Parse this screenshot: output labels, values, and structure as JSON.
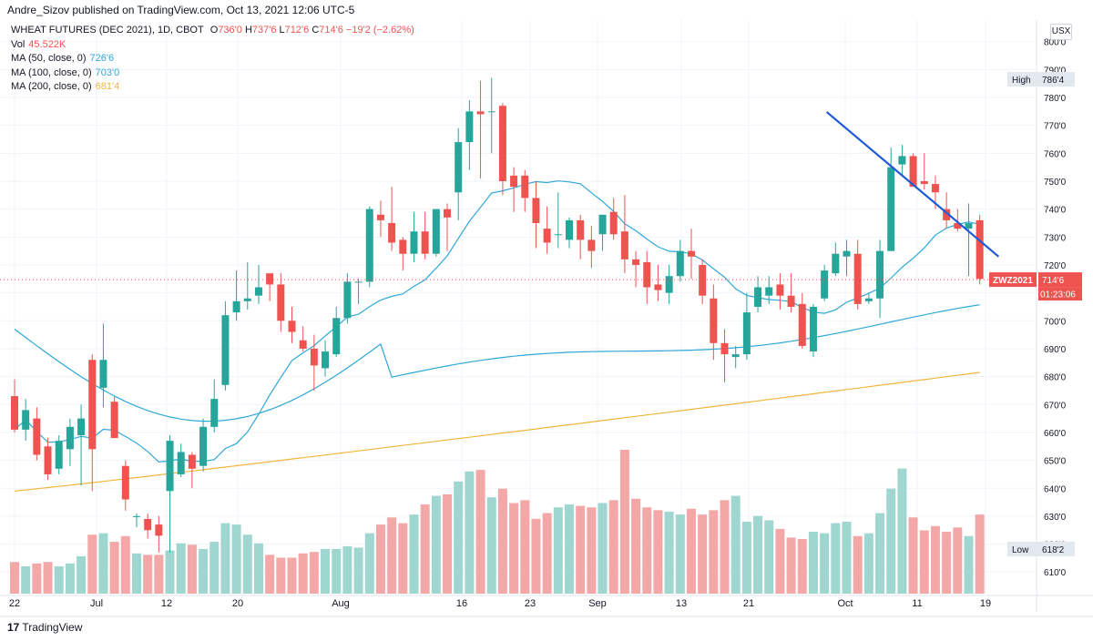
{
  "header": {
    "published_line": "Andre_Sizov published on TradingView.com, Oct 13, 2021 12:06 UTC-5"
  },
  "legend": {
    "symbol_line": "WHEAT FUTURES (DEC 2021), 1D, CBOT",
    "ohlc": {
      "open_label": "O",
      "open": "736'0",
      "high_label": "H",
      "high": "737'6",
      "low_label": "L",
      "low": "712'6",
      "close_label": "C",
      "close": "714'6",
      "change": "−19'2 (−2.62%)"
    },
    "volume": {
      "label": "Vol",
      "value": "45.522K"
    },
    "ma_lines": [
      {
        "label": "MA (50, close, 0)",
        "value": "726'6",
        "color": "#2fa8d8"
      },
      {
        "label": "MA (100, close, 0)",
        "value": "703'0",
        "color": "#2fa8d8"
      },
      {
        "label": "MA (200, close, 0)",
        "value": "681'4",
        "color": "#f2b63d"
      }
    ]
  },
  "currency_badge": "USX",
  "price_axis": {
    "ticks": [
      "800'0",
      "790'0",
      "780'0",
      "770'0",
      "760'0",
      "750'0",
      "740'0",
      "730'0",
      "720'0",
      "710'0",
      "700'0",
      "690'0",
      "680'0",
      "670'0",
      "660'0",
      "650'0",
      "640'0",
      "630'0",
      "620'0",
      "610'0"
    ],
    "high_label": "High",
    "high_value": "786'4",
    "low_label": "Low",
    "low_value": "618'2",
    "last_symbol": "ZWZ2021",
    "last_price": "714'6",
    "countdown": "01:23:06"
  },
  "time_axis": {
    "labels": [
      "22",
      "Jul",
      "12",
      "20",
      "Aug",
      "16",
      "23",
      "Sep",
      "13",
      "21",
      "Oct",
      "11",
      "19"
    ]
  },
  "footer": {
    "logo_glyph": "17",
    "brand": "TradingView"
  },
  "colors": {
    "up": "#26a69a",
    "down": "#ef5350",
    "vol_up": "#9fd6d0",
    "vol_down": "#f4a7a7",
    "ma50": "#2fa8d8",
    "ma100": "#2fa8d8",
    "ma200": "#f2b63d",
    "trendline": "#1e5bd6",
    "grid": "#f0f3fa"
  },
  "chart_data": {
    "type": "candlestick",
    "price_unit": "cents/bu",
    "ylim": [
      603,
      804
    ],
    "candles": [
      {
        "o": 673,
        "h": 679,
        "l": 660,
        "c": 661
      },
      {
        "o": 661,
        "h": 672,
        "l": 657,
        "c": 668
      },
      {
        "o": 665,
        "h": 669,
        "l": 650,
        "c": 652
      },
      {
        "o": 655,
        "h": 658,
        "l": 643,
        "c": 645
      },
      {
        "o": 647,
        "h": 659,
        "l": 645,
        "c": 657
      },
      {
        "o": 654,
        "h": 665,
        "l": 648,
        "c": 662
      },
      {
        "o": 659,
        "h": 670,
        "l": 641,
        "c": 665
      },
      {
        "o": 686,
        "h": 688,
        "l": 639,
        "c": 654
      },
      {
        "o": 676,
        "h": 699,
        "l": 669,
        "c": 686
      },
      {
        "o": 671,
        "h": 673,
        "l": 658,
        "c": 658
      },
      {
        "o": 648,
        "h": 650,
        "l": 632,
        "c": 636
      },
      {
        "o": 630,
        "h": 631,
        "l": 626,
        "c": 630
      },
      {
        "o": 629,
        "h": 631,
        "l": 622,
        "c": 625
      },
      {
        "o": 627,
        "h": 630,
        "l": 617,
        "c": 623
      },
      {
        "o": 639,
        "h": 659,
        "l": 617,
        "c": 657
      },
      {
        "o": 645,
        "h": 656,
        "l": 644,
        "c": 653
      },
      {
        "o": 652,
        "h": 653,
        "l": 640,
        "c": 647
      },
      {
        "o": 648,
        "h": 665,
        "l": 646,
        "c": 662
      },
      {
        "o": 662,
        "h": 679,
        "l": 660,
        "c": 672
      },
      {
        "o": 677,
        "h": 707,
        "l": 675,
        "c": 702
      },
      {
        "o": 703,
        "h": 718,
        "l": 700,
        "c": 707
      },
      {
        "o": 707,
        "h": 721,
        "l": 704,
        "c": 708
      },
      {
        "o": 709,
        "h": 720,
        "l": 706,
        "c": 712
      },
      {
        "o": 717,
        "h": 716,
        "l": 707,
        "c": 713
      },
      {
        "o": 713,
        "h": 717,
        "l": 696,
        "c": 700
      },
      {
        "o": 700,
        "h": 705,
        "l": 692,
        "c": 696
      },
      {
        "o": 693,
        "h": 698,
        "l": 689,
        "c": 690
      },
      {
        "o": 690,
        "h": 695,
        "l": 675,
        "c": 684
      },
      {
        "o": 683,
        "h": 693,
        "l": 680,
        "c": 689
      },
      {
        "o": 688,
        "h": 705,
        "l": 687,
        "c": 701
      },
      {
        "o": 701,
        "h": 717,
        "l": 699,
        "c": 714
      },
      {
        "o": 714,
        "h": 715,
        "l": 706,
        "c": 714
      },
      {
        "o": 714,
        "h": 741,
        "l": 712,
        "c": 740
      },
      {
        "o": 738,
        "h": 743,
        "l": 730,
        "c": 736
      },
      {
        "o": 735,
        "h": 748,
        "l": 725,
        "c": 728
      },
      {
        "o": 729,
        "h": 730,
        "l": 718,
        "c": 724
      },
      {
        "o": 724,
        "h": 739,
        "l": 721,
        "c": 732
      },
      {
        "o": 732,
        "h": 739,
        "l": 722,
        "c": 724
      },
      {
        "o": 724,
        "h": 740,
        "l": 723,
        "c": 740
      },
      {
        "o": 740,
        "h": 742,
        "l": 725,
        "c": 737
      },
      {
        "o": 746,
        "h": 769,
        "l": 736,
        "c": 764
      },
      {
        "o": 764,
        "h": 779,
        "l": 754,
        "c": 775
      },
      {
        "o": 775,
        "h": 786,
        "l": 751,
        "c": 774
      },
      {
        "o": 775,
        "h": 787,
        "l": 760,
        "c": 775
      },
      {
        "o": 777,
        "h": 778,
        "l": 745,
        "c": 750
      },
      {
        "o": 752,
        "h": 755,
        "l": 739,
        "c": 748
      },
      {
        "o": 752,
        "h": 754,
        "l": 739,
        "c": 744
      },
      {
        "o": 744,
        "h": 750,
        "l": 726,
        "c": 735
      },
      {
        "o": 733,
        "h": 741,
        "l": 724,
        "c": 728
      },
      {
        "o": 731,
        "h": 746,
        "l": 726,
        "c": 731
      },
      {
        "o": 729,
        "h": 737,
        "l": 726,
        "c": 736
      },
      {
        "o": 736,
        "h": 738,
        "l": 722,
        "c": 729
      },
      {
        "o": 729,
        "h": 734,
        "l": 719,
        "c": 725
      },
      {
        "o": 731,
        "h": 737,
        "l": 725,
        "c": 738
      },
      {
        "o": 739,
        "h": 744,
        "l": 729,
        "c": 731
      },
      {
        "o": 732,
        "h": 745,
        "l": 717,
        "c": 722
      },
      {
        "o": 722,
        "h": 725,
        "l": 712,
        "c": 720
      },
      {
        "o": 721,
        "h": 725,
        "l": 706,
        "c": 712
      },
      {
        "o": 713,
        "h": 720,
        "l": 707,
        "c": 711
      },
      {
        "o": 710,
        "h": 720,
        "l": 706,
        "c": 716
      },
      {
        "o": 716,
        "h": 729,
        "l": 714,
        "c": 725
      },
      {
        "o": 725,
        "h": 733,
        "l": 715,
        "c": 723
      },
      {
        "o": 720,
        "h": 722,
        "l": 706,
        "c": 709
      },
      {
        "o": 708,
        "h": 713,
        "l": 686,
        "c": 692
      },
      {
        "o": 692,
        "h": 697,
        "l": 678,
        "c": 688
      },
      {
        "o": 687,
        "h": 691,
        "l": 683,
        "c": 688
      },
      {
        "o": 688,
        "h": 710,
        "l": 686,
        "c": 703
      },
      {
        "o": 705,
        "h": 716,
        "l": 703,
        "c": 712
      },
      {
        "o": 709,
        "h": 716,
        "l": 706,
        "c": 712
      },
      {
        "o": 713,
        "h": 717,
        "l": 704,
        "c": 709
      },
      {
        "o": 709,
        "h": 717,
        "l": 703,
        "c": 705
      },
      {
        "o": 706,
        "h": 710,
        "l": 690,
        "c": 691
      },
      {
        "o": 689,
        "h": 706,
        "l": 687,
        "c": 705
      },
      {
        "o": 708,
        "h": 720,
        "l": 707,
        "c": 718
      },
      {
        "o": 717,
        "h": 728,
        "l": 716,
        "c": 724
      },
      {
        "o": 723,
        "h": 729,
        "l": 716,
        "c": 725
      },
      {
        "o": 724,
        "h": 729,
        "l": 704,
        "c": 706
      },
      {
        "o": 707,
        "h": 710,
        "l": 706,
        "c": 708
      },
      {
        "o": 708,
        "h": 729,
        "l": 701,
        "c": 725
      },
      {
        "o": 725,
        "h": 762,
        "l": 725,
        "c": 755
      },
      {
        "o": 756,
        "h": 763,
        "l": 752,
        "c": 759
      },
      {
        "o": 759,
        "h": 760,
        "l": 748,
        "c": 748
      },
      {
        "o": 750,
        "h": 760,
        "l": 747,
        "c": 749
      },
      {
        "o": 749,
        "h": 752,
        "l": 740,
        "c": 746
      },
      {
        "o": 740,
        "h": 746,
        "l": 733,
        "c": 736
      },
      {
        "o": 735,
        "h": 740,
        "l": 732,
        "c": 733
      },
      {
        "o": 733,
        "h": 742,
        "l": 716,
        "c": 735
      },
      {
        "o": 736,
        "h": 738,
        "l": 713,
        "c": 715
      }
    ],
    "volume_relative": [
      0.22,
      0.19,
      0.21,
      0.22,
      0.19,
      0.21,
      0.26,
      0.41,
      0.42,
      0.36,
      0.4,
      0.28,
      0.27,
      0.27,
      0.3,
      0.35,
      0.34,
      0.31,
      0.36,
      0.49,
      0.48,
      0.41,
      0.35,
      0.27,
      0.25,
      0.25,
      0.28,
      0.29,
      0.31,
      0.31,
      0.33,
      0.32,
      0.42,
      0.48,
      0.53,
      0.49,
      0.55,
      0.62,
      0.68,
      0.69,
      0.78,
      0.85,
      0.86,
      0.67,
      0.73,
      0.63,
      0.65,
      0.52,
      0.56,
      0.6,
      0.62,
      0.61,
      0.6,
      0.63,
      0.65,
      1.0,
      0.66,
      0.6,
      0.58,
      0.57,
      0.55,
      0.59,
      0.55,
      0.58,
      0.65,
      0.68,
      0.5,
      0.54,
      0.51,
      0.45,
      0.39,
      0.38,
      0.43,
      0.42,
      0.49,
      0.5,
      0.4,
      0.42,
      0.56,
      0.73,
      0.87,
      0.53,
      0.44,
      0.47,
      0.43,
      0.46,
      0.4,
      0.55,
      0.42
    ],
    "trendline": {
      "from_index": 73.2,
      "from_price": 774.8,
      "to_index": 88.7,
      "to_price": 723.0
    },
    "price_level": 714.75
  }
}
